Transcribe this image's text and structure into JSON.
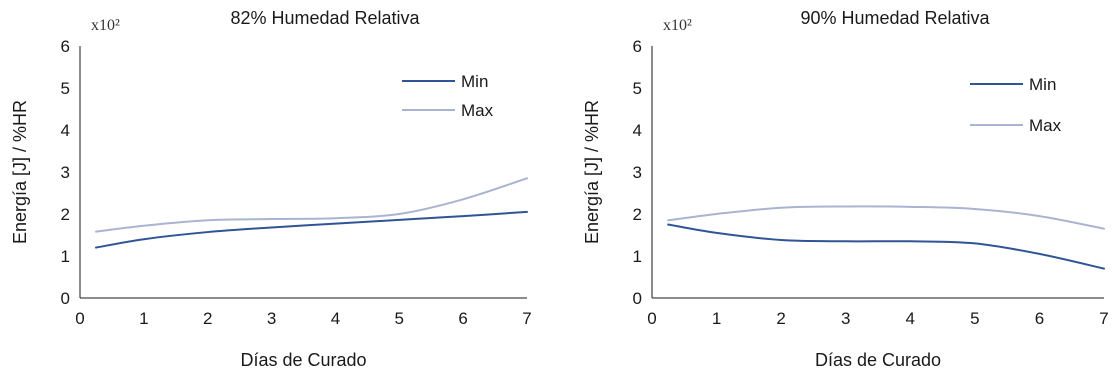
{
  "colors": {
    "min_series": "#2f5597",
    "max_series": "#a9b4d0",
    "axis": "#1a1a1a"
  },
  "chart_data": [
    {
      "type": "line",
      "title": "82% Humedad Relativa",
      "scale_note": "x10²",
      "xlabel": "Días de Curado",
      "ylabel": "Energía [J] / %HR",
      "xlim": [
        0,
        7
      ],
      "ylim": [
        0,
        6
      ],
      "xticks": [
        "0",
        "1",
        "2",
        "3",
        "4",
        "5",
        "6",
        "7"
      ],
      "yticks": [
        "0",
        "1",
        "2",
        "3",
        "4",
        "5",
        "6"
      ],
      "grid": false,
      "legend_position": "top-right",
      "series": [
        {
          "name": "Min",
          "x": [
            0.25,
            1,
            2,
            3,
            4,
            5,
            6,
            7
          ],
          "y": [
            1.2,
            1.4,
            1.57,
            1.68,
            1.77,
            1.86,
            1.95,
            2.05
          ]
        },
        {
          "name": "Max",
          "x": [
            0.25,
            1,
            2,
            3,
            4,
            5,
            6,
            7
          ],
          "y": [
            1.58,
            1.72,
            1.85,
            1.88,
            1.9,
            2.0,
            2.35,
            2.85
          ]
        }
      ]
    },
    {
      "type": "line",
      "title": "90% Humedad Relativa",
      "scale_note": "x10²",
      "xlabel": "Días de Curado",
      "ylabel": "Energía [J] / %HR",
      "xlim": [
        0,
        7
      ],
      "ylim": [
        0,
        6
      ],
      "xticks": [
        "0",
        "1",
        "2",
        "3",
        "4",
        "5",
        "6",
        "7"
      ],
      "yticks": [
        "0",
        "1",
        "2",
        "3",
        "4",
        "5",
        "6"
      ],
      "grid": false,
      "legend_position": "top-right",
      "series": [
        {
          "name": "Min",
          "x": [
            0.25,
            1,
            2,
            3,
            4,
            5,
            6,
            7
          ],
          "y": [
            1.75,
            1.55,
            1.38,
            1.35,
            1.35,
            1.3,
            1.05,
            0.7
          ]
        },
        {
          "name": "Max",
          "x": [
            0.25,
            1,
            2,
            3,
            4,
            5,
            6,
            7
          ],
          "y": [
            1.85,
            2.0,
            2.15,
            2.18,
            2.17,
            2.12,
            1.95,
            1.65
          ]
        }
      ]
    }
  ]
}
